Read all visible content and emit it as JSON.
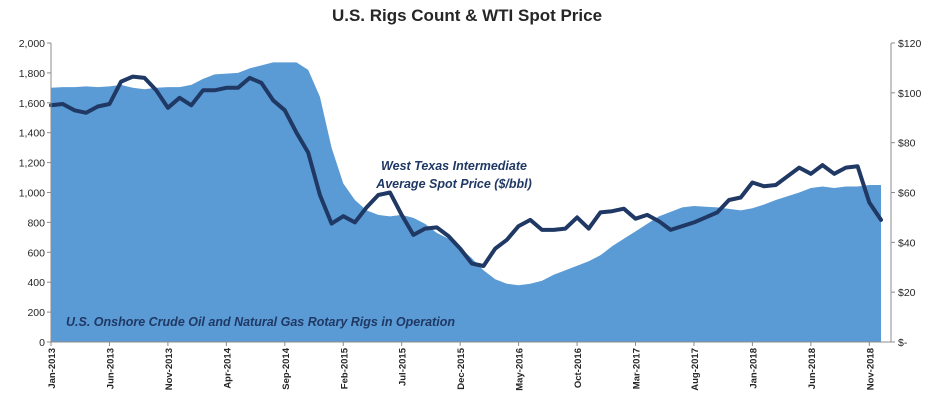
{
  "chart_data": {
    "type": "area",
    "title": "U.S. Rigs Count & WTI Spot Price",
    "x": [
      "Jan-2013",
      "Feb-2013",
      "Mar-2013",
      "Apr-2013",
      "May-2013",
      "Jun-2013",
      "Jul-2013",
      "Aug-2013",
      "Sep-2013",
      "Oct-2013",
      "Nov-2013",
      "Dec-2013",
      "Jan-2014",
      "Feb-2014",
      "Mar-2014",
      "Apr-2014",
      "May-2014",
      "Jun-2014",
      "Jul-2014",
      "Aug-2014",
      "Sep-2014",
      "Oct-2014",
      "Nov-2014",
      "Dec-2014",
      "Jan-2015",
      "Feb-2015",
      "Mar-2015",
      "Apr-2015",
      "May-2015",
      "Jun-2015",
      "Jul-2015",
      "Aug-2015",
      "Sep-2015",
      "Oct-2015",
      "Nov-2015",
      "Dec-2015",
      "Jan-2016",
      "Feb-2016",
      "Mar-2016",
      "Apr-2016",
      "May-2016",
      "Jun-2016",
      "Jul-2016",
      "Aug-2016",
      "Sep-2016",
      "Oct-2016",
      "Nov-2016",
      "Dec-2016",
      "Jan-2017",
      "Feb-2017",
      "Mar-2017",
      "Apr-2017",
      "May-2017",
      "Jun-2017",
      "Jul-2017",
      "Aug-2017",
      "Sep-2017",
      "Oct-2017",
      "Nov-2017",
      "Dec-2017",
      "Jan-2018",
      "Feb-2018",
      "Mar-2018",
      "Apr-2018",
      "May-2018",
      "Jun-2018",
      "Jul-2018",
      "Aug-2018",
      "Sep-2018",
      "Oct-2018",
      "Nov-2018",
      "Dec-2018"
    ],
    "x_tick_labels": [
      "Jan-2013",
      "Jun-2013",
      "Nov-2013",
      "Apr-2014",
      "Sep-2014",
      "Feb-2015",
      "Jul-2015",
      "Dec-2015",
      "May-2016",
      "Oct-2016",
      "Mar-2017",
      "Aug-2017",
      "Jan-2018",
      "Jun-2018",
      "Nov-2018"
    ],
    "x_tick_every": 5,
    "series": [
      {
        "name": "U.S. Onshore Crude Oil and Natural Gas Rotary Rigs in Operation",
        "kind": "area",
        "axis": "left",
        "values": [
          1700,
          1705,
          1705,
          1710,
          1705,
          1710,
          1720,
          1700,
          1690,
          1700,
          1705,
          1705,
          1720,
          1760,
          1790,
          1795,
          1800,
          1830,
          1850,
          1870,
          1870,
          1870,
          1820,
          1640,
          1300,
          1060,
          950,
          880,
          850,
          840,
          850,
          830,
          790,
          730,
          690,
          630,
          560,
          480,
          420,
          390,
          380,
          390,
          410,
          450,
          480,
          510,
          540,
          580,
          640,
          690,
          740,
          790,
          840,
          870,
          900,
          910,
          905,
          900,
          890,
          880,
          895,
          920,
          950,
          975,
          1000,
          1030,
          1040,
          1030,
          1040,
          1040,
          1050,
          1050
        ],
        "color": "#5b9bd5"
      },
      {
        "name": "West Texas Intermediate Average Spot Price ($/bbl)",
        "kind": "line",
        "axis": "right",
        "values": [
          95,
          95.5,
          93,
          92,
          94.5,
          95.5,
          104.5,
          106.5,
          106,
          101,
          94,
          98,
          95,
          101,
          101,
          102,
          102,
          106,
          104,
          97,
          93,
          84,
          76,
          59,
          47.5,
          50.5,
          48,
          54,
          59,
          60,
          51,
          43,
          45.5,
          46,
          42.5,
          37.5,
          31.5,
          30.5,
          37.5,
          41,
          46.5,
          49,
          45,
          45,
          45.5,
          50,
          45.5,
          52,
          52.5,
          53.5,
          49.5,
          51,
          48.5,
          45,
          46.5,
          48,
          50,
          52,
          57,
          58,
          64,
          62.5,
          63,
          66.5,
          70,
          67.5,
          71,
          67.5,
          70,
          70.5,
          56,
          49
        ],
        "color": "#1f3864"
      }
    ],
    "y_left": {
      "range": [
        0,
        2000
      ],
      "ticks": [
        "0",
        "200",
        "400",
        "600",
        "800",
        "1,000",
        "1,200",
        "1,400",
        "1,600",
        "1,800",
        "2,000"
      ]
    },
    "y_right": {
      "range": [
        0,
        120
      ],
      "ticks": [
        "$-",
        "$20",
        "$40",
        "$60",
        "$80",
        "$100",
        "$120"
      ]
    },
    "annotations": {
      "price_line_1": "West Texas Intermediate",
      "price_line_2": "Average Spot Price ($/bbl)",
      "rigs": "U.S. Onshore Crude Oil and Natural Gas Rotary Rigs in Operation"
    },
    "grid": false,
    "legend": "none"
  }
}
